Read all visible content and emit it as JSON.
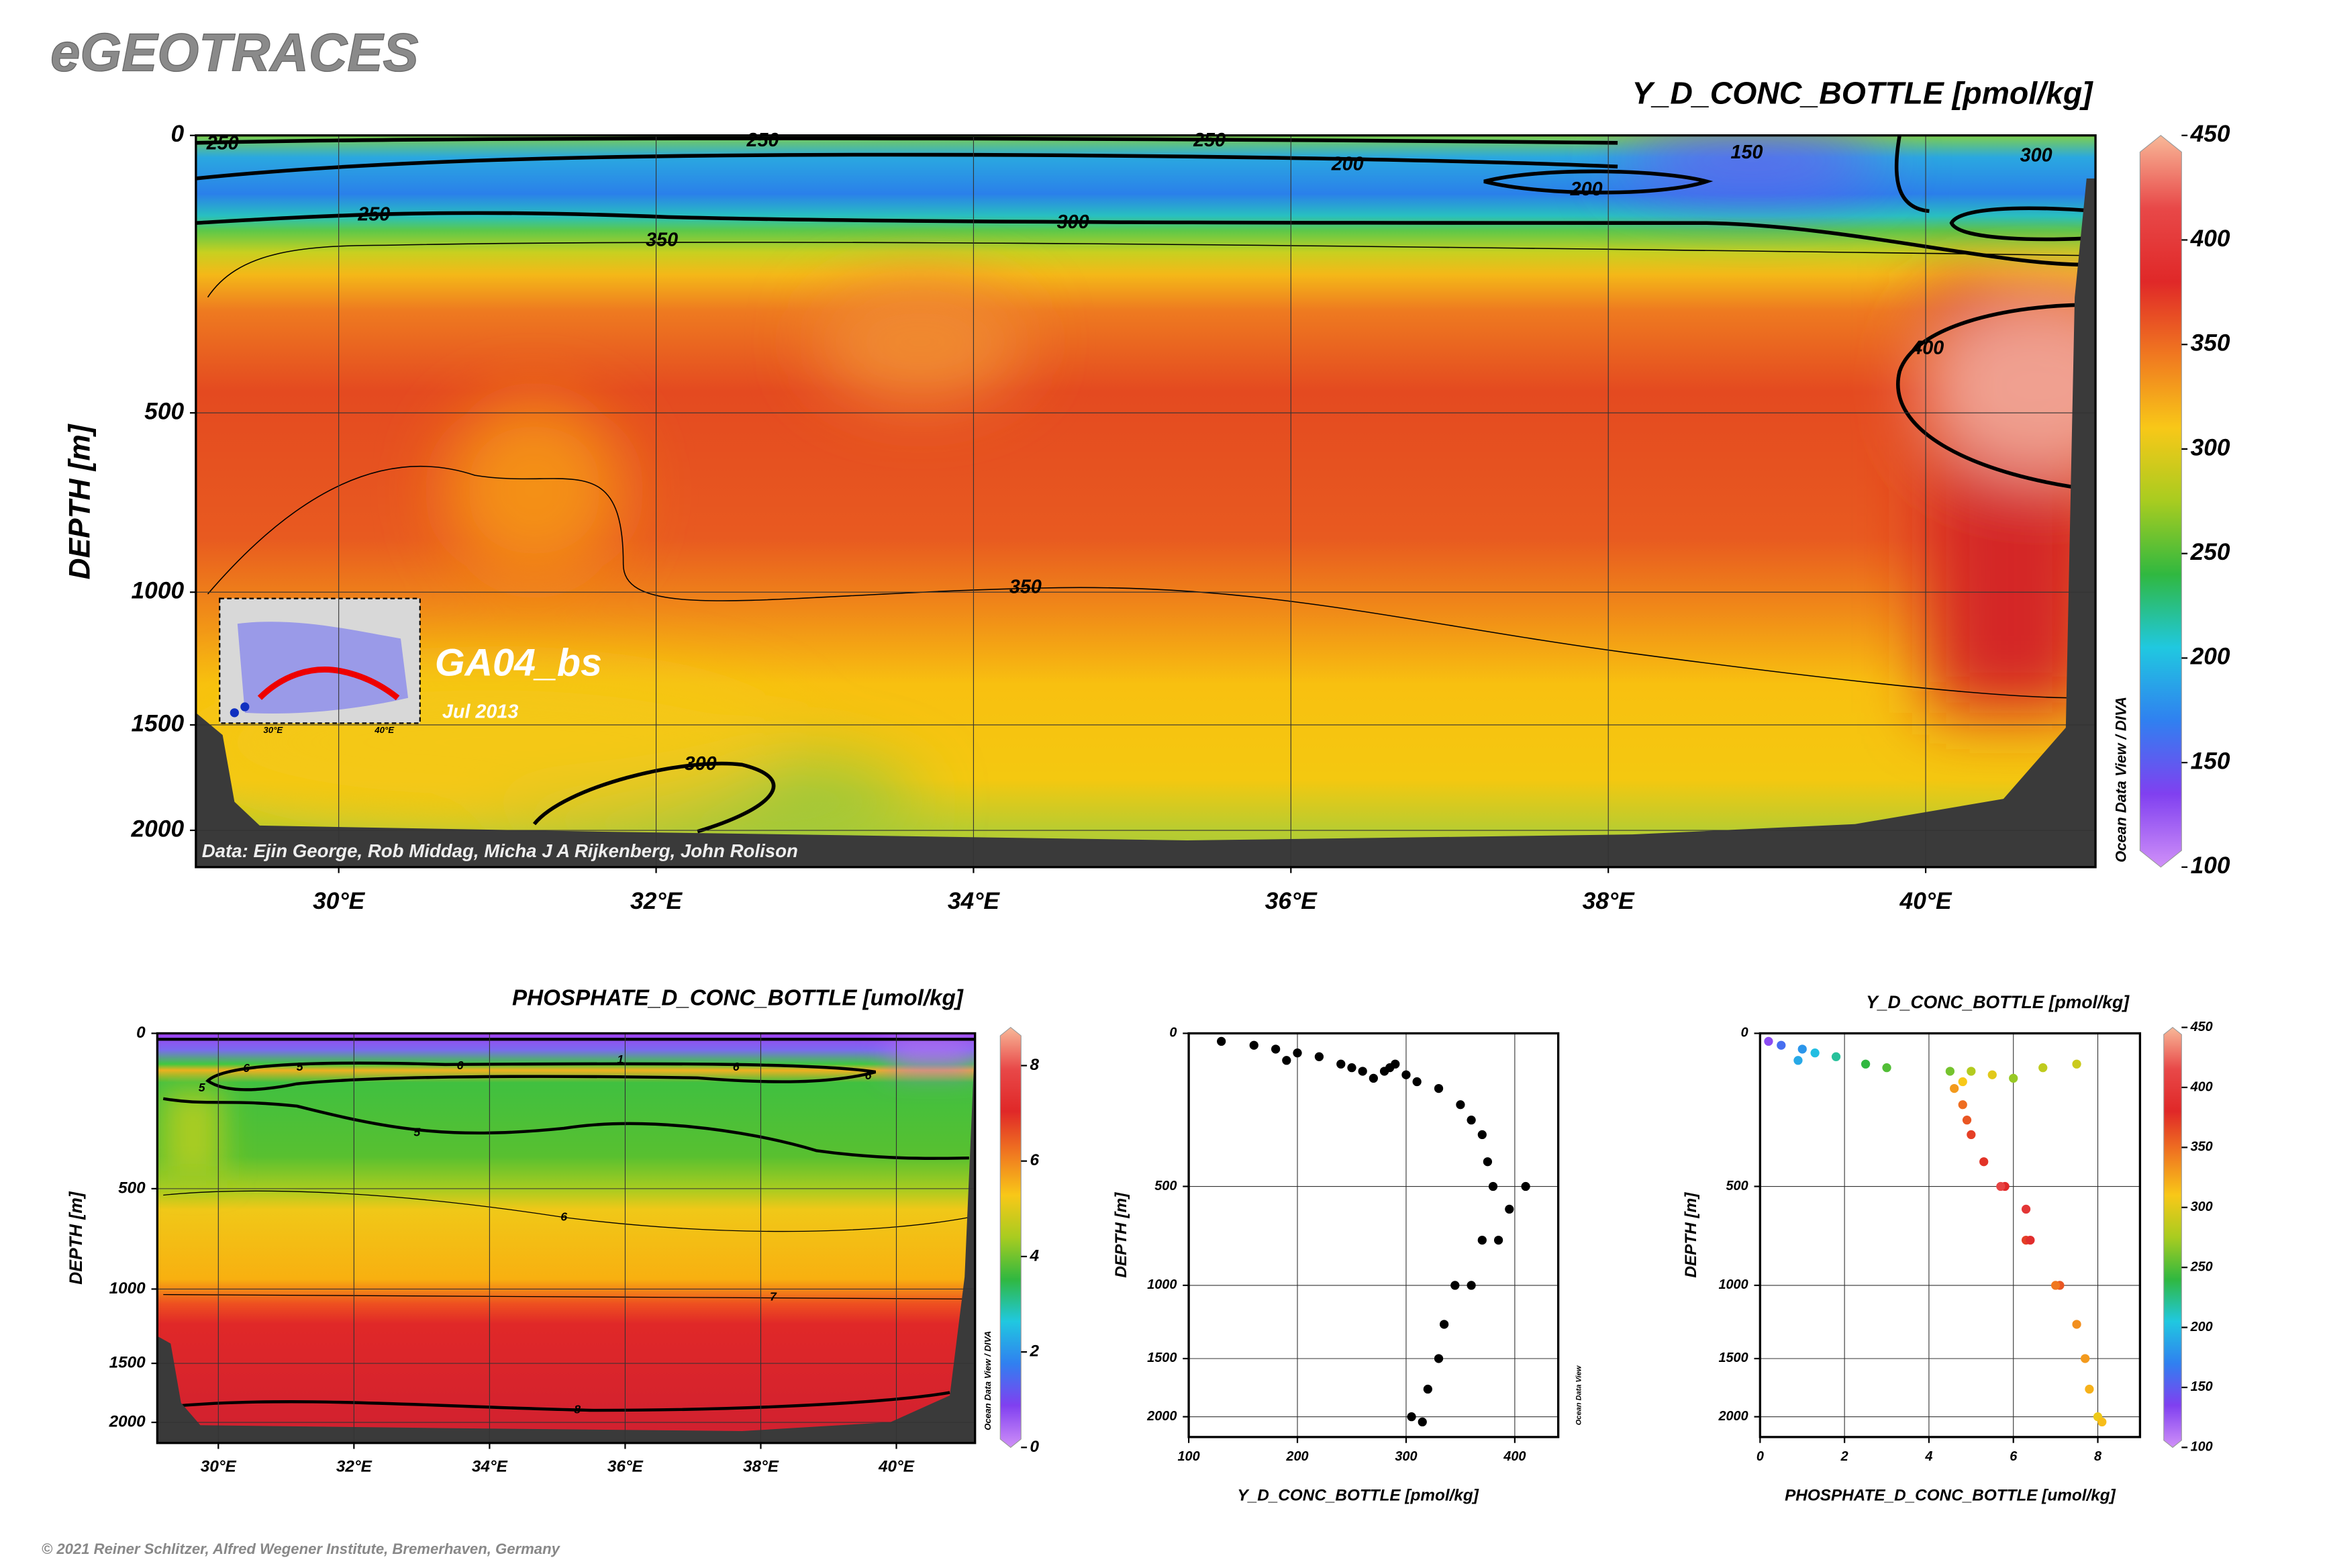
{
  "header": {
    "title": "eGEOTRACES",
    "footer": "© 2021 Reiner Schlitzer, Alfred Wegener Institute, Bremerhaven, Germany"
  },
  "chart_data": [
    {
      "type": "section",
      "title": "Y_D_CONC_BOTTLE [pmol/kg]",
      "ylabel": "DEPTH [m]",
      "side_label": "Ocean Data View / DIVA",
      "credit": "Data: Ejin George, Rob Middag, Micha J A Rijkenberg, John Rolison",
      "inset": {
        "cruise": "GA04_bs",
        "date": "Jul 2013",
        "xticks": [
          {
            "value": 30,
            "label": "30°E"
          },
          {
            "value": 40,
            "label": "40°E"
          }
        ]
      },
      "xlim": [
        29.1,
        41.07
      ],
      "xticks": [
        {
          "value": 30,
          "label": "30°E"
        },
        {
          "value": 32,
          "label": "32°E"
        },
        {
          "value": 34,
          "label": "34°E"
        },
        {
          "value": 36,
          "label": "36°E"
        },
        {
          "value": 38,
          "label": "38°E"
        },
        {
          "value": 40,
          "label": "40°E"
        }
      ],
      "ylim": [
        0,
        2200
      ],
      "yticks": [
        0,
        500,
        1000,
        1500,
        2000
      ],
      "grid": true,
      "colorbar": {
        "lim": [
          100,
          450
        ],
        "ticks": [
          100,
          150,
          200,
          250,
          300,
          350,
          400,
          450
        ],
        "colors": [
          "#d090f8",
          "#8040f0",
          "#3080f0",
          "#20c8e0",
          "#30b840",
          "#a8cc20",
          "#f8c818",
          "#f07820",
          "#e02828",
          "#e84848",
          "#f8b898"
        ]
      },
      "contour_labels": [
        "250",
        "250",
        "250",
        "200",
        "200",
        "150",
        "300",
        "250",
        "300",
        "350",
        "400",
        "350",
        "300"
      ]
    },
    {
      "type": "section",
      "title": "PHOSPHATE_D_CONC_BOTTLE [umol/kg]",
      "ylabel": "DEPTH [m]",
      "side_label": "Ocean Data View / DIVA",
      "xlim": [
        29.1,
        41.16
      ],
      "xticks": [
        {
          "value": 30,
          "label": "30°E"
        },
        {
          "value": 32,
          "label": "32°E"
        },
        {
          "value": 34,
          "label": "34°E"
        },
        {
          "value": 36,
          "label": "36°E"
        },
        {
          "value": 38,
          "label": "38°E"
        },
        {
          "value": 40,
          "label": "40°E"
        }
      ],
      "ylim": [
        0,
        2200
      ],
      "yticks": [
        0,
        500,
        1000,
        1500,
        2000
      ],
      "grid": true,
      "colorbar": {
        "lim": [
          0,
          8.8
        ],
        "ticks": [
          0,
          2,
          4,
          6,
          8
        ],
        "colors": [
          "#d090f8",
          "#8040f0",
          "#3080f0",
          "#20c8e0",
          "#30b840",
          "#a8cc20",
          "#f8c818",
          "#f07820",
          "#e02828",
          "#e84848",
          "#f8b898"
        ]
      },
      "contour_labels": [
        "6",
        "5",
        "6",
        "1",
        "6",
        "6",
        "5",
        "5",
        "6",
        "7",
        "8"
      ]
    },
    {
      "type": "scatter",
      "xlabel": "Y_D_CONC_BOTTLE [pmol/kg]",
      "ylabel": "DEPTH [m]",
      "side_label": "Ocean Data View",
      "xlim": [
        100,
        440
      ],
      "xticks": [
        100,
        200,
        300,
        400
      ],
      "ylim": [
        0,
        2200
      ],
      "yticks": [
        0,
        500,
        1000,
        1500,
        2000
      ],
      "grid": true,
      "color": "#000000",
      "x": [
        130,
        160,
        180,
        200,
        220,
        190,
        240,
        250,
        260,
        280,
        300,
        270,
        285,
        290,
        310,
        330,
        350,
        360,
        370,
        375,
        380,
        410,
        395,
        370,
        385,
        360,
        345,
        335,
        330,
        320,
        305,
        315
      ],
      "y": [
        20,
        30,
        40,
        50,
        60,
        70,
        80,
        90,
        100,
        100,
        110,
        120,
        90,
        80,
        130,
        150,
        200,
        250,
        300,
        400,
        500,
        500,
        600,
        750,
        750,
        1000,
        1000,
        1250,
        1500,
        1750,
        2000,
        2050
      ]
    },
    {
      "type": "scatter",
      "title": "Y_D_CONC_BOTTLE [pmol/kg]",
      "xlabel": "PHOSPHATE_D_CONC_BOTTLE [umol/kg]",
      "ylabel": "DEPTH [m]",
      "xlim": [
        0,
        9
      ],
      "xticks": [
        0,
        2,
        4,
        6,
        8
      ],
      "ylim": [
        0,
        2200
      ],
      "yticks": [
        0,
        500,
        1000,
        1500,
        2000
      ],
      "grid": true,
      "x": [
        0.2,
        0.5,
        1.0,
        1.3,
        1.8,
        0.9,
        2.5,
        3.0,
        4.5,
        5.0,
        5.5,
        6.0,
        6.7,
        7.5,
        4.8,
        4.6,
        4.8,
        4.9,
        5.0,
        5.3,
        5.8,
        5.7,
        6.3,
        6.3,
        6.4,
        7.1,
        7.0,
        7.5,
        7.7,
        7.8,
        8.0,
        8.1
      ],
      "y": [
        20,
        30,
        40,
        50,
        60,
        70,
        80,
        90,
        100,
        100,
        110,
        120,
        90,
        80,
        130,
        150,
        200,
        250,
        300,
        400,
        500,
        500,
        600,
        750,
        750,
        1000,
        1000,
        1250,
        1500,
        1750,
        2000,
        2050
      ],
      "values": [
        130,
        160,
        180,
        200,
        220,
        190,
        240,
        250,
        260,
        280,
        300,
        270,
        285,
        290,
        310,
        330,
        350,
        360,
        370,
        375,
        380,
        410,
        395,
        370,
        385,
        360,
        345,
        335,
        330,
        320,
        305,
        315
      ],
      "colorbar": {
        "lim": [
          100,
          450
        ],
        "ticks": [
          100,
          150,
          200,
          250,
          300,
          350,
          400,
          450
        ],
        "colors": [
          "#d090f8",
          "#8040f0",
          "#3080f0",
          "#20c8e0",
          "#30b840",
          "#a8cc20",
          "#f8c818",
          "#f07820",
          "#e02828",
          "#e84848",
          "#f8b898"
        ]
      }
    }
  ]
}
